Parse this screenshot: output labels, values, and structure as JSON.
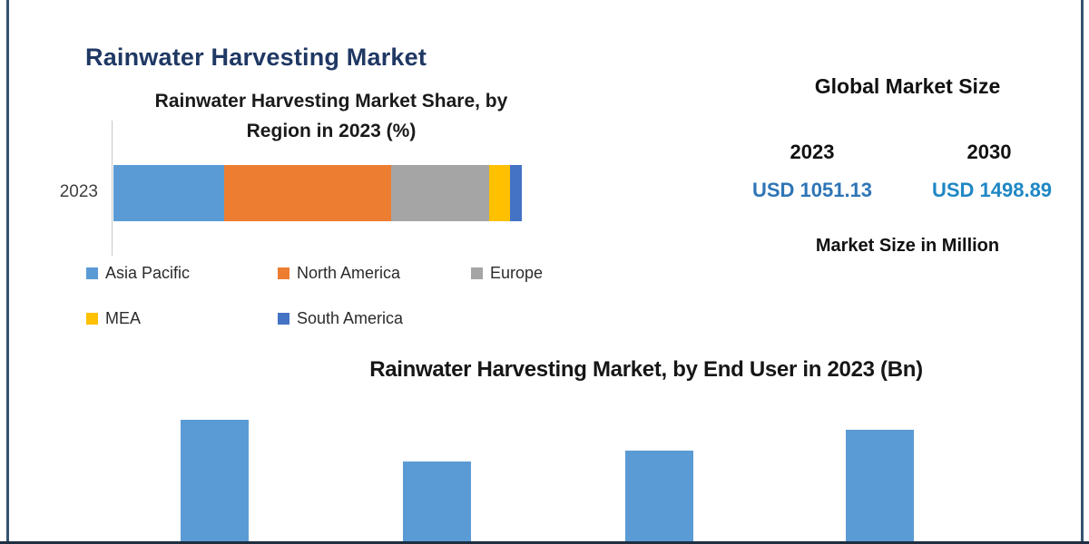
{
  "header": {
    "title": "Rainwater Harvesting Market",
    "title_color": "#1F3864"
  },
  "chart_data": [
    {
      "type": "stacked-bar-horizontal",
      "title": "Rainwater Harvesting Market Share, by\nRegion in 2023 (%)",
      "categories": [
        "2023"
      ],
      "unit": "%",
      "legend_position": "bottom",
      "series": [
        {
          "name": "Asia Pacific",
          "value": 27,
          "color": "#5B9BD5"
        },
        {
          "name": "North America",
          "value": 41,
          "color": "#ED7D31"
        },
        {
          "name": "Europe",
          "value": 24,
          "color": "#A5A5A5"
        },
        {
          "name": "MEA",
          "value": 5,
          "color": "#FFC000"
        },
        {
          "name": "South America",
          "value": 3,
          "color": "#4472C4"
        }
      ]
    },
    {
      "type": "bar",
      "title": "Rainwater Harvesting Market, by End User in 2023 (Bn)",
      "bar_color": "#5B9BD5",
      "values_relative": [
        1.0,
        0.66,
        0.75,
        0.92
      ],
      "note": "bars and category/value axis are cut off at the bottom edge of the image; no numeric labels visible"
    }
  ],
  "market_size": {
    "title": "Global Market Size",
    "columns": [
      {
        "year": "2023",
        "value": "USD 1051.13",
        "value_color": "#2E75B6"
      },
      {
        "year": "2030",
        "value": "USD 1498.89",
        "value_color": "#1F87C4"
      }
    ],
    "unit_note": "Market Size in Million"
  },
  "colors": {
    "frame_border": "#35536F",
    "axis_line": "#C9C9C9"
  }
}
